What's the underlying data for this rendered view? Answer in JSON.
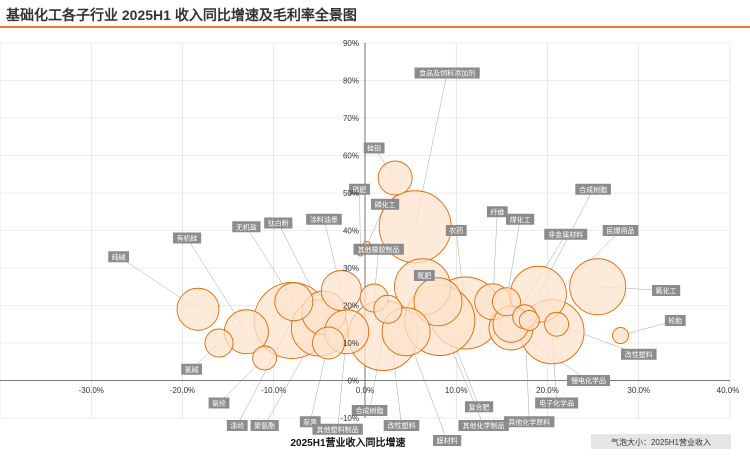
{
  "title": "基础化工各子行业 2025H1 收入同比增速及毛利率全景图",
  "chart_data": {
    "type": "scatter",
    "title": "基础化工各子行业 2025H1 收入同比增速及毛利率全景图",
    "xlabel": "2025H1营业收入同比增速",
    "ylabel": "",
    "size_note": "气泡大小：2025H1营业收入",
    "xlim": [
      -40,
      40
    ],
    "ylim": [
      -10,
      90
    ],
    "x_ticks": [
      "-30.0%",
      "-20.0%",
      "-10.0%",
      "0.0%",
      "10.0%",
      "20.0%",
      "30.0%",
      "40.0%"
    ],
    "y_ticks": [
      "-10%",
      "0%",
      "10%",
      "20%",
      "30%",
      "40%",
      "50%",
      "60%",
      "70%",
      "80%",
      "90%"
    ],
    "grid": true,
    "series": [
      {
        "points": [
          {
            "label": "食品及饲料添加剂",
            "x": 5.5,
            "y": 41,
            "size": 36,
            "label_x": 9,
            "label_y": 82
          },
          {
            "label": "硅铝",
            "x": 3.3,
            "y": 54,
            "size": 17,
            "label_x": 1,
            "label_y": 62
          },
          {
            "label": "磷肥",
            "x": -0.5,
            "y": 34,
            "size": 3,
            "label_x": -0.6,
            "label_y": 51
          },
          {
            "label": "磷化工",
            "x": 0.2,
            "y": 36,
            "size": 4,
            "label_x": 2.2,
            "label_y": 47
          },
          {
            "label": "纯碱",
            "x": -18.3,
            "y": 19,
            "size": 21,
            "label_x": -27,
            "label_y": 33
          },
          {
            "label": "有机硅",
            "x": -13,
            "y": 13,
            "size": 22,
            "label_x": -19.5,
            "label_y": 38
          },
          {
            "label": "无机盐",
            "x": -7.8,
            "y": 21,
            "size": 19,
            "label_x": -13,
            "label_y": 41
          },
          {
            "label": "钛白粉",
            "x": -4.5,
            "y": 18,
            "size": 22,
            "label_x": -9.5,
            "label_y": 42
          },
          {
            "label": "涂料油墨",
            "x": -2.6,
            "y": 24,
            "size": 20,
            "label_x": -4.5,
            "label_y": 43
          },
          {
            "label": "其他橡胶制品",
            "x": 1,
            "y": 22,
            "size": 14,
            "label_x": 1.5,
            "label_y": 35
          },
          {
            "label": "氯碱",
            "x": -16,
            "y": 10,
            "size": 14,
            "label_x": -19,
            "label_y": 3
          },
          {
            "label": "氨纶",
            "x": -11,
            "y": 6,
            "size": 12,
            "label_x": -16,
            "label_y": -6
          },
          {
            "label": "涤纶",
            "x": -8,
            "y": 16,
            "size": 38,
            "label_x": -14,
            "label_y": -12
          },
          {
            "label": "聚氨酯",
            "x": -5,
            "y": 14,
            "size": 28,
            "label_x": -11,
            "label_y": -12
          },
          {
            "label": "炭黑",
            "x": -4,
            "y": 10,
            "size": 16,
            "label_x": -6,
            "label_y": -11
          },
          {
            "label": "其他塑料制品",
            "x": -2,
            "y": 13,
            "size": 22,
            "label_x": -3,
            "label_y": -13
          },
          {
            "label": "合成树脂",
            "x": 2,
            "y": 12,
            "size": 35,
            "label_x": 0.5,
            "label_y": -8
          },
          {
            "label": "改性塑料",
            "x": 2.5,
            "y": 19,
            "size": 14,
            "label_x": 4,
            "label_y": -12
          },
          {
            "label": "氮肥",
            "x": 6.3,
            "y": 25,
            "size": 28,
            "label_x": 6.5,
            "label_y": 28
          },
          {
            "label": "复合肥",
            "x": 8,
            "y": 21,
            "size": 24,
            "label_x": 12.5,
            "label_y": -7
          },
          {
            "label": "其他化学制品",
            "x": 8.2,
            "y": 16,
            "size": 35,
            "label_x": 13,
            "label_y": -12
          },
          {
            "label": "膜材料",
            "x": 4.5,
            "y": 13,
            "size": 24,
            "label_x": 9,
            "label_y": -16
          },
          {
            "label": "农药",
            "x": 11,
            "y": 18,
            "size": 36,
            "label_x": 10,
            "label_y": 40
          },
          {
            "label": "纤维",
            "x": 14,
            "y": 21,
            "size": 18,
            "label_x": 14.5,
            "label_y": 45
          },
          {
            "label": "煤化工",
            "x": 15.5,
            "y": 21,
            "size": 14,
            "label_x": 17,
            "label_y": 43
          },
          {
            "label": "合成树脂",
            "x": 19,
            "y": 23,
            "size": 28,
            "label_x": 25,
            "label_y": 51
          },
          {
            "label": "非金属材料",
            "x": 16,
            "y": 15,
            "size": 18,
            "label_x": 22,
            "label_y": 39
          },
          {
            "label": "民爆用品",
            "x": 18,
            "y": 16,
            "size": 10,
            "label_x": 28,
            "label_y": 40
          },
          {
            "label": "电子化学品",
            "x": 20.5,
            "y": 13,
            "size": 32,
            "label_x": 21,
            "label_y": -6
          },
          {
            "label": "其他化学原料",
            "x": 17.5,
            "y": 17,
            "size": 12,
            "label_x": 18,
            "label_y": -11
          },
          {
            "label": "锂电化学品",
            "x": 16,
            "y": 14,
            "size": 22,
            "label_x": 24.5,
            "label_y": 0
          },
          {
            "label": "氟化工",
            "x": 25.5,
            "y": 25,
            "size": 28,
            "label_x": 33,
            "label_y": 24
          },
          {
            "label": "轮胎",
            "x": 28,
            "y": 12,
            "size": 8,
            "label_x": 34,
            "label_y": 16
          },
          {
            "label": "改性塑料",
            "x": 21,
            "y": 15,
            "size": 12,
            "label_x": 30,
            "label_y": 7
          }
        ]
      }
    ],
    "colors": {
      "bubble_fill": "#fde3cc",
      "bubble_stroke": "#e26b0a",
      "label_bg": "#8c8c8c",
      "grid": "#d9d9d9",
      "accent": "#ea7a22"
    }
  }
}
